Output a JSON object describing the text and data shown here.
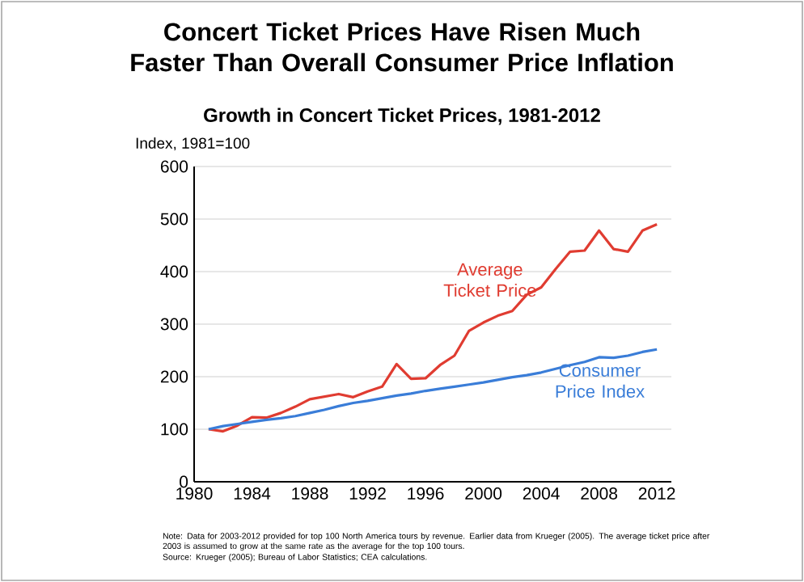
{
  "chart_data": {
    "type": "line",
    "title": "Concert Ticket Prices Have Risen Much Faster Than Overall Consumer Price Inflation",
    "subtitle": "Growth in Concert Ticket Prices, 1981-2012",
    "ylabel": "Index, 1981=100",
    "x": [
      1981,
      1982,
      1983,
      1984,
      1985,
      1986,
      1987,
      1988,
      1989,
      1990,
      1991,
      1992,
      1993,
      1994,
      1995,
      1996,
      1997,
      1998,
      1999,
      2000,
      2001,
      2002,
      2003,
      2004,
      2005,
      2006,
      2007,
      2008,
      2009,
      2010,
      2011,
      2012
    ],
    "series": [
      {
        "name": "Average Ticket Price",
        "color": "#e03c31",
        "values": [
          100,
          96,
          107,
          123,
          122,
          131,
          143,
          157,
          162,
          167,
          161,
          172,
          181,
          224,
          196,
          197,
          222,
          240,
          287,
          303,
          316,
          325,
          356,
          370,
          405,
          438,
          440,
          478,
          443,
          438,
          478,
          490
        ]
      },
      {
        "name": "Consumer Price Index",
        "color": "#3a7dd8",
        "values": [
          100,
          106,
          110,
          114,
          118,
          121,
          125,
          131,
          137,
          144,
          150,
          154,
          159,
          164,
          168,
          173,
          177,
          181,
          185,
          189,
          194,
          199,
          203,
          208,
          215,
          222,
          228,
          237,
          236,
          240,
          247,
          252
        ]
      }
    ],
    "xlim": [
      1980,
      2013
    ],
    "xticks": [
      1980,
      1984,
      1988,
      1992,
      1996,
      2000,
      2004,
      2008,
      2012
    ],
    "ylim": [
      0,
      600
    ],
    "yticks": [
      0,
      100,
      200,
      300,
      400,
      500,
      600
    ],
    "grid": "y",
    "annotations": [
      "Note: Data for 2003-2012 provided for top 100 North America tours by revenue. Earlier data from Krueger (2005). The average ticket price after 2003 is assumed to grow at the same rate as the average for the top 100 tours.",
      "Source: Krueger (2005); Bureau of Labor Statistics; CEA calculations."
    ]
  }
}
